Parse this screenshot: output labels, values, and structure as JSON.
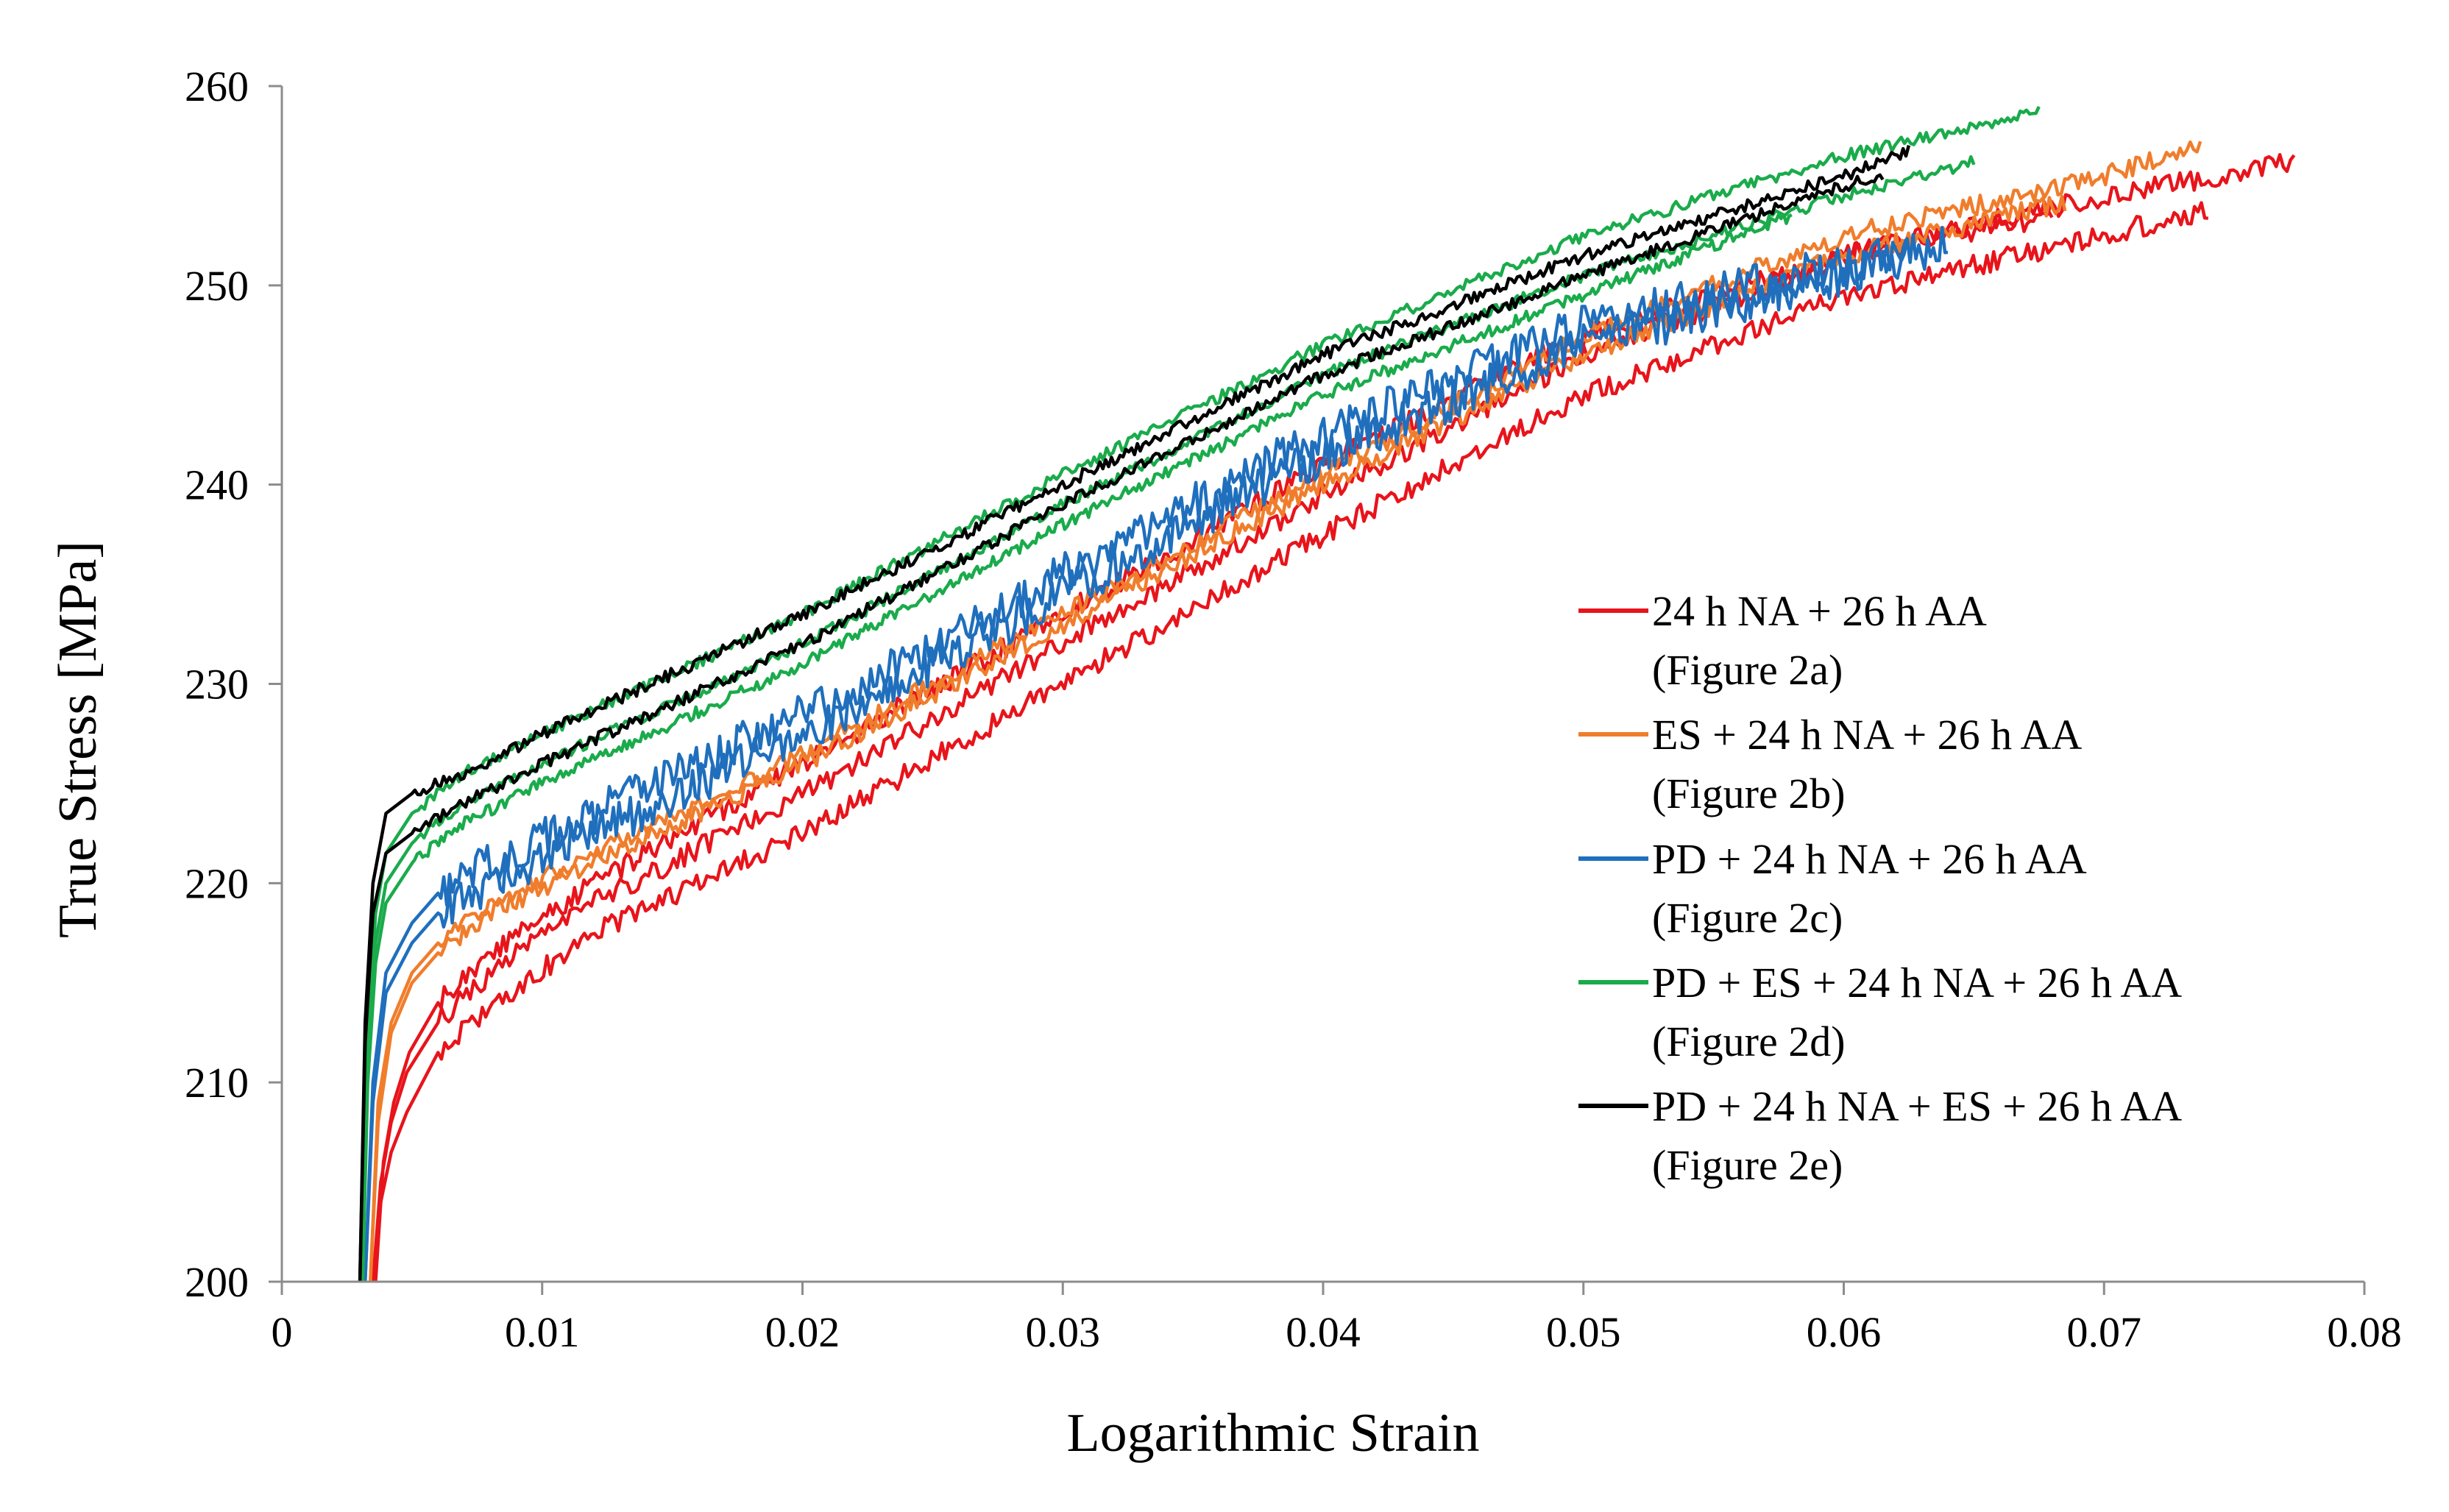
{
  "chart_data": {
    "type": "line",
    "title": "",
    "xlabel": "Logarithmic Strain",
    "ylabel": "True Stress [MPa]",
    "xlim": [
      0,
      0.08
    ],
    "ylim": [
      200,
      260
    ],
    "x_ticks": [
      0,
      0.01,
      0.02,
      0.03,
      0.04,
      0.05,
      0.06,
      0.07,
      0.08
    ],
    "x_tick_labels": [
      "0",
      "0.01",
      "0.02",
      "0.03",
      "0.04",
      "0.05",
      "0.06",
      "0.07",
      "0.08"
    ],
    "y_ticks": [
      200,
      210,
      220,
      230,
      240,
      250,
      260
    ],
    "y_tick_labels": [
      "200",
      "210",
      "220",
      "230",
      "240",
      "250",
      "260"
    ],
    "grid": false,
    "legend_position": "right",
    "series": [
      {
        "name": "24 h NA + 26 h AA",
        "caption": "(Figure 2a)",
        "color": "#e8141b",
        "curves": [
          {
            "x": [
              0.0035,
              0.0038,
              0.0042,
              0.0048,
              0.006,
              0.008,
              0.012,
              0.02,
              0.03,
              0.04,
              0.05,
              0.06,
              0.07,
              0.0773
            ],
            "y": [
              200,
              205,
              208,
              210.5,
              213,
              215.5,
              219,
              224.5,
              232,
              239.5,
              246.5,
              251.5,
              254.5,
              256.2
            ]
          },
          {
            "x": [
              0.0035,
              0.0038,
              0.0042,
              0.0048,
              0.006,
              0.008,
              0.012,
              0.02,
              0.03,
              0.04,
              0.05,
              0.06,
              0.07,
              0.074
            ],
            "y": [
              200,
              204,
              206.5,
              208.5,
              211.5,
              213.8,
              217.5,
              222.5,
              230,
              237.5,
              244.5,
              249.5,
              252.5,
              253.8
            ]
          },
          {
            "x": [
              0.0036,
              0.0039,
              0.0043,
              0.0049,
              0.006,
              0.008,
              0.012,
              0.02,
              0.03,
              0.04,
              0.05,
              0.06,
              0.068
            ],
            "y": [
              200,
              206,
              209,
              211.5,
              214,
              216.5,
              220,
              226,
              233.5,
              241,
              247.5,
              251.5,
              253.5
            ]
          }
        ]
      },
      {
        "name": "ES + 24 h NA + 26 h AA",
        "caption": "(Figure 2b)",
        "color": "#f07d2c",
        "curves": [
          {
            "x": [
              0.0034,
              0.0037,
              0.0042,
              0.005,
              0.006,
              0.008,
              0.012,
              0.02,
              0.03,
              0.04,
              0.05,
              0.06,
              0.07,
              0.0737
            ],
            "y": [
              200,
              209,
              213,
              215.5,
              217,
              219,
              221.5,
              226.5,
              233.5,
              240.5,
              247.5,
              252.5,
              255.5,
              257
            ]
          },
          {
            "x": [
              0.0034,
              0.0037,
              0.0042,
              0.005,
              0.006,
              0.008,
              0.012,
              0.02,
              0.03,
              0.04,
              0.05,
              0.06,
              0.0685
            ],
            "y": [
              200,
              208,
              212.5,
              215,
              216.5,
              218.5,
              221,
              226,
              233,
              240,
              246.5,
              251.5,
              254.2
            ]
          }
        ]
      },
      {
        "name": "PD + 24 h NA + 26 h AA",
        "caption": "(Figure 2c)",
        "color": "#1f6fbd",
        "curves": [
          {
            "x": [
              0.0032,
              0.0035,
              0.004,
              0.005,
              0.006,
              0.008,
              0.012,
              0.02,
              0.03,
              0.04,
              0.05,
              0.06,
              0.064
            ],
            "y": [
              200,
              210,
              215.5,
              218,
              219.5,
              221,
              223.5,
              228.5,
              235.5,
              242.5,
              248,
              251,
              252
            ]
          },
          {
            "x": [
              0.0032,
              0.0035,
              0.004,
              0.005,
              0.006,
              0.008,
              0.012,
              0.02,
              0.03,
              0.04,
              0.05,
              0.06,
              0.0625
            ],
            "y": [
              200,
              209,
              214.5,
              217,
              218.5,
              220,
              222.5,
              227.5,
              234.5,
              241.5,
              247,
              250.5,
              251.5
            ]
          }
        ]
      },
      {
        "name": "PD + ES + 24 h NA + 26 h AA",
        "caption": "(Figure 2d)",
        "color": "#1aab4b",
        "curves": [
          {
            "x": [
              0.0031,
              0.0033,
              0.0036,
              0.004,
              0.005,
              0.007,
              0.01,
              0.02,
              0.03,
              0.04,
              0.05,
              0.06,
              0.0675
            ],
            "y": [
              200,
              212,
              218.5,
              221.5,
              223.5,
              225.5,
              227.5,
              233.5,
              240.5,
              247,
              252.5,
              256.5,
              258.7
            ]
          },
          {
            "x": [
              0.0031,
              0.0033,
              0.0036,
              0.004,
              0.005,
              0.007,
              0.01,
              0.02,
              0.03,
              0.04,
              0.05,
              0.06,
              0.065
            ],
            "y": [
              200,
              211,
              217,
              220,
              222,
              224,
              226,
              232,
              239,
              245.5,
              250.5,
              254.5,
              256.2
            ]
          },
          {
            "x": [
              0.0031,
              0.0033,
              0.0036,
              0.004,
              0.005,
              0.007,
              0.01,
              0.02,
              0.03,
              0.04,
              0.05,
              0.058
            ],
            "y": [
              200,
              210,
              216,
              219,
              221,
              223,
              225,
              231,
              238,
              244.5,
              249.5,
              253.5
            ]
          }
        ]
      },
      {
        "name": "PD + 24 h NA + ES + 26 h AA",
        "caption": "(Figure 2e)",
        "color": "#000000",
        "curves": [
          {
            "x": [
              0.003,
              0.0032,
              0.0035,
              0.004,
              0.005,
              0.007,
              0.01,
              0.02,
              0.03,
              0.04,
              0.05,
              0.06,
              0.0625
            ],
            "y": [
              200,
              213,
              220,
              223.5,
              224.5,
              225.5,
              227.5,
              233.5,
              240,
              246.5,
              251.5,
              255.5,
              256.8
            ]
          },
          {
            "x": [
              0.003,
              0.0032,
              0.0035,
              0.004,
              0.005,
              0.007,
              0.01,
              0.02,
              0.03,
              0.04,
              0.05,
              0.06,
              0.0615
            ],
            "y": [
              200,
              212,
              218.5,
              221.5,
              222.5,
              224,
              226,
              232,
              239,
              245.5,
              250.5,
              255,
              255.5
            ]
          }
        ]
      }
    ]
  }
}
